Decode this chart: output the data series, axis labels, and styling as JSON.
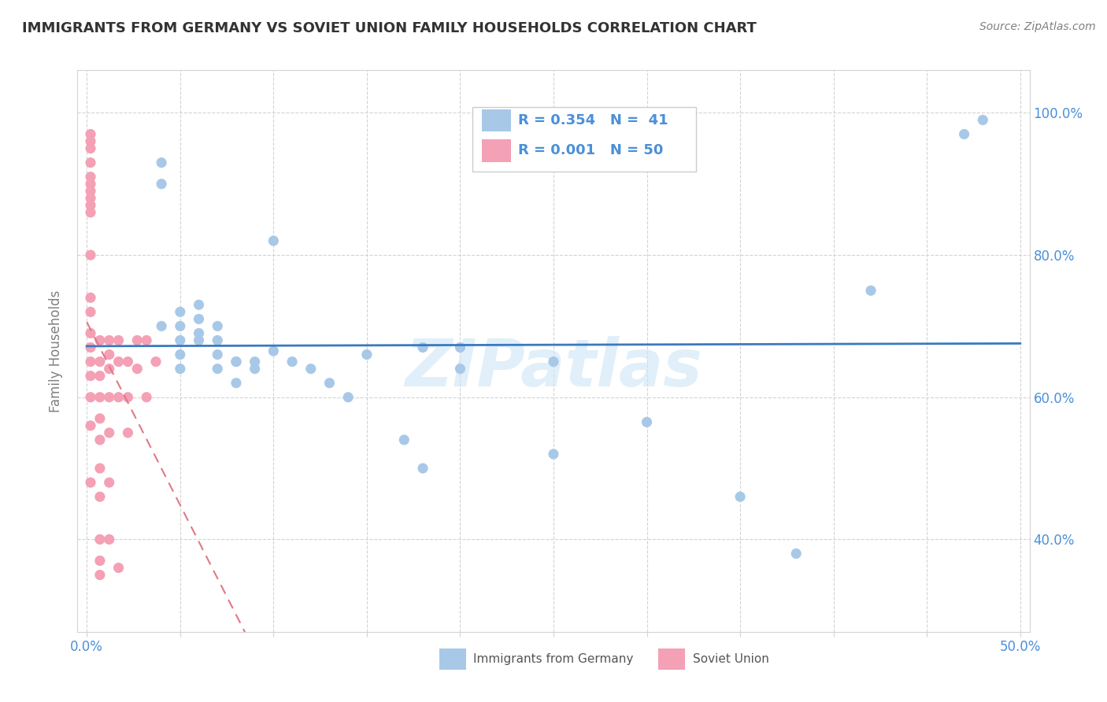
{
  "title": "IMMIGRANTS FROM GERMANY VS SOVIET UNION FAMILY HOUSEHOLDS CORRELATION CHART",
  "source": "Source: ZipAtlas.com",
  "ylabel": "Family Households",
  "xlim": [
    -0.005,
    0.505
  ],
  "ylim": [
    0.27,
    1.06
  ],
  "x_ticks": [
    0.0,
    0.05,
    0.1,
    0.15,
    0.2,
    0.25,
    0.3,
    0.35,
    0.4,
    0.45,
    0.5
  ],
  "x_tick_labels": [
    "0.0%",
    "",
    "",
    "",
    "",
    "",
    "",
    "",
    "",
    "",
    "50.0%"
  ],
  "y_ticks": [
    0.4,
    0.6,
    0.8,
    1.0
  ],
  "y_tick_labels": [
    "40.0%",
    "60.0%",
    "80.0%",
    "100.0%"
  ],
  "germany_color": "#a8c8e8",
  "soviet_color": "#f4a0b5",
  "germany_trend_color": "#3a7abf",
  "soviet_trend_color": "#e07888",
  "tick_color": "#4a90d9",
  "legend_R_germany": "R = 0.354",
  "legend_N_germany": "N =  41",
  "legend_R_soviet": "R = 0.001",
  "legend_N_soviet": "N = 50",
  "watermark": "ZIPatlas",
  "germany_x": [
    0.04,
    0.04,
    0.04,
    0.05,
    0.05,
    0.05,
    0.05,
    0.05,
    0.06,
    0.06,
    0.06,
    0.06,
    0.07,
    0.07,
    0.07,
    0.07,
    0.08,
    0.08,
    0.08,
    0.09,
    0.09,
    0.1,
    0.1,
    0.11,
    0.12,
    0.13,
    0.14,
    0.15,
    0.17,
    0.18,
    0.18,
    0.2,
    0.2,
    0.25,
    0.25,
    0.3,
    0.35,
    0.38,
    0.42,
    0.47,
    0.48
  ],
  "germany_y": [
    0.93,
    0.9,
    0.7,
    0.72,
    0.7,
    0.68,
    0.66,
    0.64,
    0.73,
    0.71,
    0.69,
    0.68,
    0.7,
    0.68,
    0.66,
    0.64,
    0.65,
    0.65,
    0.62,
    0.65,
    0.64,
    0.82,
    0.665,
    0.65,
    0.64,
    0.62,
    0.6,
    0.66,
    0.54,
    0.5,
    0.67,
    0.64,
    0.67,
    0.65,
    0.52,
    0.565,
    0.46,
    0.38,
    0.75,
    0.97,
    0.99
  ],
  "soviet_x": [
    0.002,
    0.002,
    0.002,
    0.002,
    0.002,
    0.002,
    0.002,
    0.002,
    0.002,
    0.002,
    0.002,
    0.002,
    0.002,
    0.002,
    0.002,
    0.002,
    0.002,
    0.002,
    0.002,
    0.002,
    0.007,
    0.007,
    0.007,
    0.007,
    0.007,
    0.007,
    0.007,
    0.007,
    0.007,
    0.007,
    0.007,
    0.012,
    0.012,
    0.012,
    0.012,
    0.012,
    0.012,
    0.012,
    0.017,
    0.017,
    0.017,
    0.017,
    0.022,
    0.022,
    0.022,
    0.027,
    0.027,
    0.032,
    0.032,
    0.037
  ],
  "soviet_y": [
    0.97,
    0.96,
    0.95,
    0.93,
    0.91,
    0.9,
    0.89,
    0.88,
    0.87,
    0.86,
    0.8,
    0.74,
    0.72,
    0.69,
    0.67,
    0.65,
    0.63,
    0.6,
    0.56,
    0.48,
    0.68,
    0.65,
    0.63,
    0.6,
    0.57,
    0.54,
    0.5,
    0.46,
    0.4,
    0.37,
    0.35,
    0.68,
    0.66,
    0.64,
    0.6,
    0.55,
    0.48,
    0.4,
    0.68,
    0.65,
    0.6,
    0.36,
    0.65,
    0.6,
    0.55,
    0.68,
    0.64,
    0.68,
    0.6,
    0.65
  ]
}
